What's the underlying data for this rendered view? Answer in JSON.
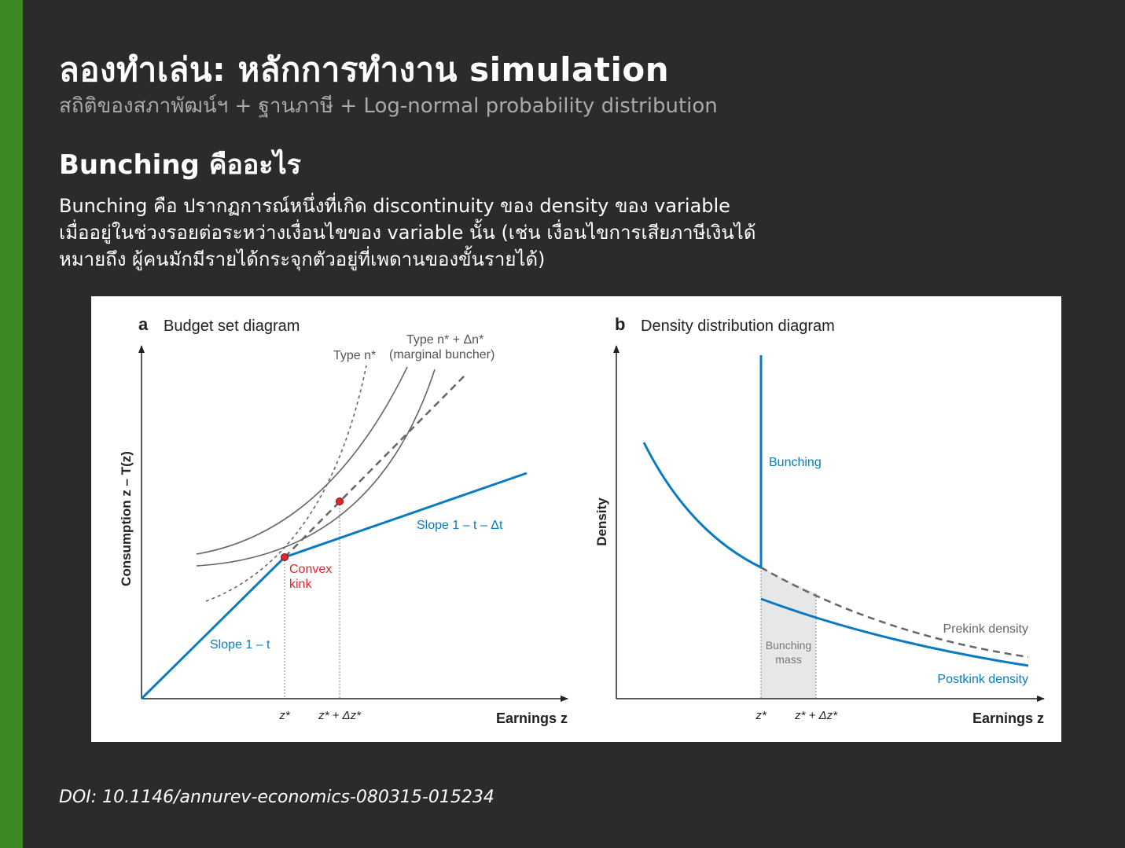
{
  "slide": {
    "title": "ลองทำเล่น: หลักการทำงาน simulation",
    "subtitle": "สถิติของสภาพัฒน์ฯ + ฐานภาษี + Log-normal probability distribution",
    "heading": "Bunching คืออะไร",
    "body_lines": [
      "Bunching คือ ปรากฏการณ์หนึ่งที่เกิด discontinuity ของ density ของ variable",
      "เมื่ออยู่ในช่วงรอยต่อระหว่างเงื่อนไขของ variable นั้น (เช่น เงื่อนไขการเสียภาษีเงินได้",
      "หมายถึง ผู้คนมักมีรายได้กระจุกตัวอยู่ที่เพดานของขั้นรายได้)"
    ],
    "doi": "DOI: 10.1146/annurev-economics-080315-015234"
  },
  "figure": {
    "colors": {
      "blue": "#0a7bc1",
      "red": "#e0262b",
      "gray": "#666666",
      "shade": "#e6e7e8"
    },
    "panel_a": {
      "letter": "a",
      "title": "Budget set diagram",
      "y_label": "Consumption z – T(z)",
      "x_label": "Earnings z",
      "type_n": "Type n*",
      "type_n_delta": "Type n* + Δn*",
      "marginal_buncher": "(marginal buncher)",
      "convex_line1": "Convex",
      "convex_line2": "kink",
      "slope_lower": "Slope 1 – t",
      "slope_upper": "Slope 1 – t – Δt",
      "tick_z": "z*",
      "tick_z_delta": "z* + Δz*"
    },
    "panel_b": {
      "letter": "b",
      "title": "Density distribution diagram",
      "y_label": "Density",
      "x_label": "Earnings z",
      "bunching": "Bunching",
      "bunching_mass_line1": "Bunching",
      "bunching_mass_line2": "mass",
      "prekink": "Prekink density",
      "postkink": "Postkink density",
      "tick_z": "z*",
      "tick_z_delta": "z* + Δz*"
    }
  }
}
